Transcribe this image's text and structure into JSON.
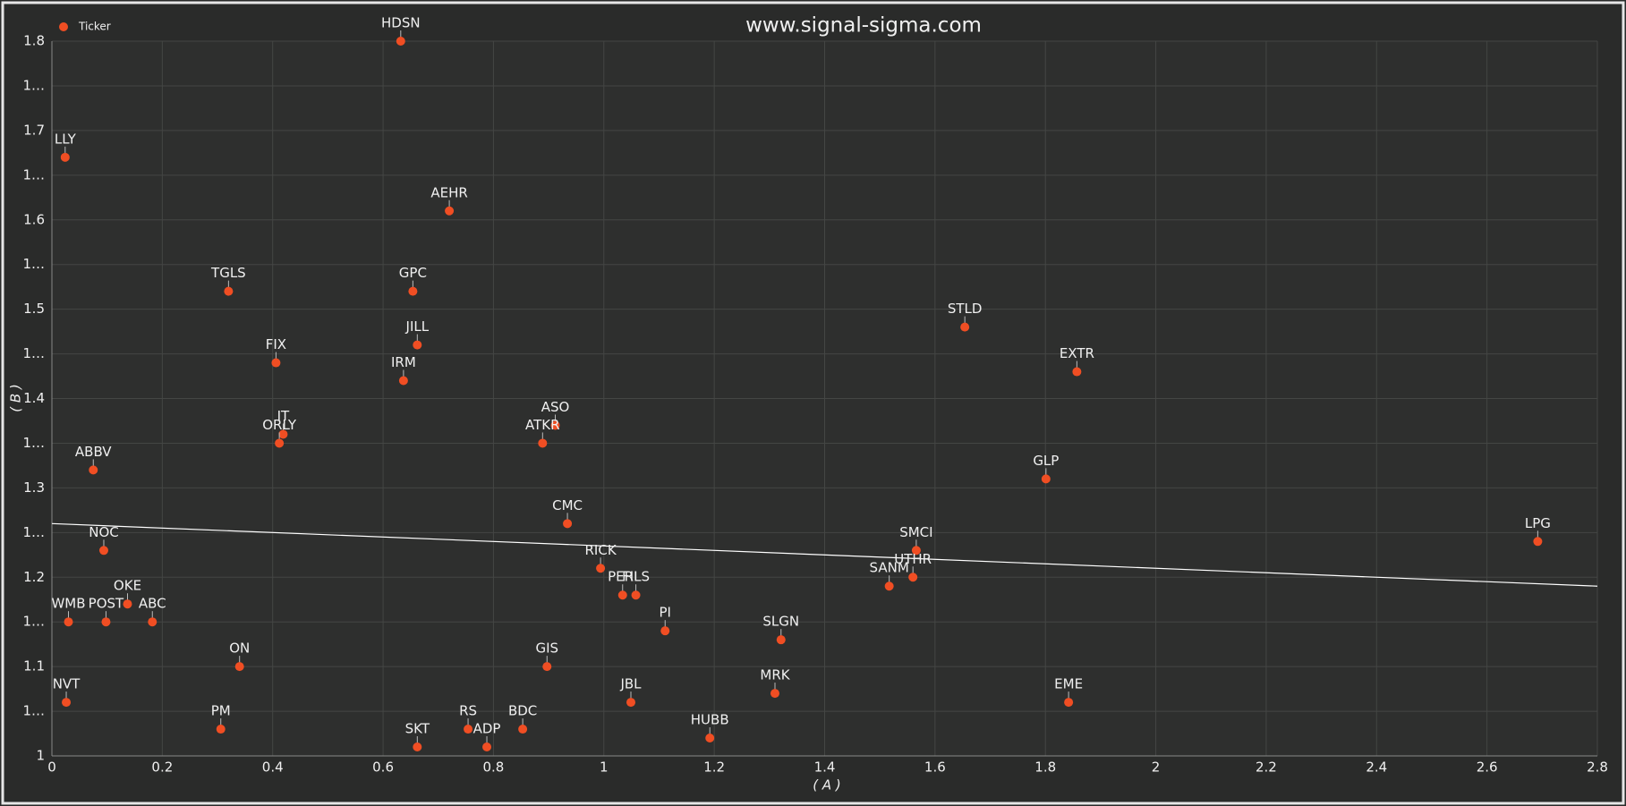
{
  "chart_data": {
    "type": "scatter",
    "title": "www.signal-sigma.com",
    "x_label": "( A )",
    "y_label": "( B )",
    "xlim": [
      0,
      2.8
    ],
    "xticks": [
      0,
      0.2,
      0.4,
      0.6,
      0.8,
      1,
      1.2,
      1.4,
      1.6,
      1.8,
      2,
      2.2,
      2.4,
      2.6,
      2.8
    ],
    "ylim": [
      1,
      1.8
    ],
    "yticks": [
      1,
      {
        "value": 1.05,
        "label": "1…"
      },
      1.1,
      {
        "value": 1.15,
        "label": "1…"
      },
      1.2,
      {
        "value": 1.25,
        "label": "1…"
      },
      1.3,
      {
        "value": 1.35,
        "label": "1…"
      },
      1.4,
      {
        "value": 1.45,
        "label": "1…"
      },
      1.5,
      {
        "value": 1.55,
        "label": "1…"
      },
      1.6,
      {
        "value": 1.65,
        "label": "1…"
      },
      1.7,
      {
        "value": 1.75,
        "label": "1…"
      },
      1.8
    ],
    "grid": true,
    "legend": "upper left",
    "series": [
      {
        "name": "Ticker",
        "color": "#f04e23",
        "labels": [
          "HDSN",
          "LLY",
          "AEHR",
          "TGLS",
          "GPC",
          "FIX",
          "JILL",
          "IRM",
          "STLD",
          "EXTR",
          "IT",
          "ORLY",
          "ASO",
          "ATKR",
          "ABBV",
          "GLP",
          "CMC",
          "LPG",
          "NOC",
          "SMCI",
          "RICK",
          "UTHR",
          "SANM",
          "PERI",
          "FILS",
          "OKE",
          "WMB",
          "POST",
          "ABC",
          "PI",
          "SLGN",
          "ON",
          "GIS",
          "NVT",
          "JBL",
          "MRK",
          "EME",
          "PM",
          "RS",
          "BDC",
          "SKT",
          "ADP",
          "HUBB"
        ],
        "x": [
          0.632,
          0.024,
          0.72,
          0.32,
          0.654,
          0.406,
          0.662,
          0.637,
          1.654,
          1.857,
          0.419,
          0.412,
          0.912,
          0.889,
          0.075,
          1.801,
          0.934,
          2.692,
          0.094,
          1.566,
          0.994,
          1.56,
          1.517,
          1.034,
          1.058,
          0.137,
          0.03,
          0.098,
          0.182,
          1.111,
          1.321,
          0.34,
          0.897,
          0.026,
          1.049,
          1.31,
          1.842,
          0.306,
          0.754,
          0.853,
          0.662,
          0.788,
          1.192
        ],
        "values": [
          1.8,
          1.67,
          1.61,
          1.52,
          1.52,
          1.44,
          1.46,
          1.42,
          1.48,
          1.43,
          1.36,
          1.35,
          1.37,
          1.35,
          1.32,
          1.31,
          1.26,
          1.24,
          1.23,
          1.23,
          1.21,
          1.2,
          1.19,
          1.18,
          1.18,
          1.17,
          1.15,
          1.15,
          1.15,
          1.14,
          1.13,
          1.1,
          1.1,
          1.06,
          1.06,
          1.07,
          1.06,
          1.03,
          1.03,
          1.03,
          1.01,
          1.01,
          1.02
        ]
      }
    ],
    "trend_line": {
      "color": "#ffffff",
      "x": [
        0,
        2.8
      ],
      "values": [
        1.26,
        1.19
      ]
    }
  }
}
